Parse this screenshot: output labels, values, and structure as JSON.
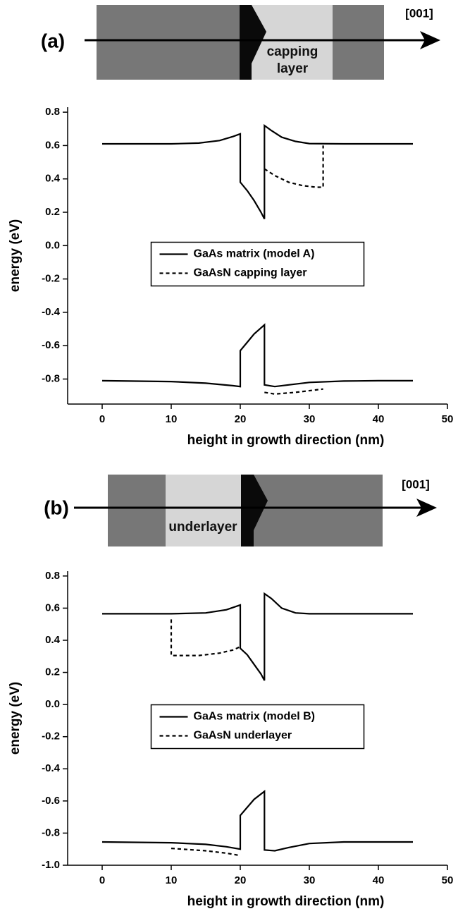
{
  "chart_data": [
    {
      "type": "line",
      "panel_label": "(a)",
      "direction_label": "[001]",
      "layer_label": "capping layer",
      "ylabel": "energy (eV)",
      "xlabel": "height in growth direction (nm)",
      "xlim": [
        -5,
        50
      ],
      "xticks": [
        0,
        10,
        20,
        30,
        40,
        50
      ],
      "ylim": [
        -0.95,
        0.83
      ],
      "yticks": [
        -0.8,
        -0.6,
        -0.4,
        -0.2,
        {
          "value": 0,
          "label": "0.0"
        },
        0.2,
        0.4,
        0.6,
        0.8
      ],
      "legend": "center",
      "series": [
        {
          "name": "GaAs matrix (model A)",
          "color": "#000000",
          "dash": "solid",
          "x": [
            0,
            5,
            10,
            14,
            17,
            19,
            20,
            20,
            21,
            22,
            23,
            23.5,
            23.5,
            24.5,
            26,
            28,
            30,
            35,
            40,
            45,
            null,
            0,
            10,
            15,
            19,
            20,
            20,
            21,
            22,
            23.5,
            23.5,
            25,
            27,
            30,
            35,
            40,
            45
          ],
          "values": [
            0.61,
            0.61,
            0.61,
            0.615,
            0.63,
            0.655,
            0.67,
            0.38,
            0.33,
            0.27,
            0.2,
            0.16,
            0.72,
            0.69,
            0.65,
            0.625,
            0.612,
            0.61,
            0.61,
            0.61,
            null,
            -0.81,
            -0.815,
            -0.825,
            -0.84,
            -0.845,
            -0.63,
            -0.58,
            -0.53,
            -0.475,
            -0.835,
            -0.845,
            -0.835,
            -0.82,
            -0.812,
            -0.81,
            -0.81
          ]
        },
        {
          "name": "GaAsN capping layer",
          "color": "#000000",
          "dash": "dashed",
          "x": [
            23.5,
            25,
            27,
            29,
            31,
            32,
            32,
            null,
            23.5,
            25,
            28,
            32
          ],
          "values": [
            0.46,
            0.42,
            0.38,
            0.36,
            0.35,
            0.35,
            0.6,
            null,
            -0.88,
            -0.89,
            -0.88,
            -0.86
          ]
        }
      ]
    },
    {
      "type": "line",
      "panel_label": "(b)",
      "direction_label": "[001]",
      "layer_label": "underlayer",
      "ylabel": "energy (eV)",
      "xlabel": "height in growth direction (nm)",
      "xlim": [
        -5,
        50
      ],
      "xticks": [
        0,
        10,
        20,
        30,
        40,
        50
      ],
      "ylim": [
        -1.0,
        0.83
      ],
      "yticks": [
        {
          "value": -1,
          "label": "-1.0"
        },
        -0.8,
        -0.6,
        -0.4,
        -0.2,
        {
          "value": 0,
          "label": "0.0"
        },
        0.2,
        0.4,
        0.6,
        0.8
      ],
      "legend": "center",
      "series": [
        {
          "name": "GaAs matrix (model B)",
          "color": "#000000",
          "dash": "solid",
          "x": [
            0,
            10,
            15,
            18,
            20,
            20,
            21,
            22,
            23,
            23.5,
            23.5,
            24.5,
            26,
            28,
            30,
            45,
            null,
            0,
            10,
            15,
            18,
            20,
            20,
            21,
            22,
            23.5,
            23.5,
            25,
            27,
            30,
            35,
            45
          ],
          "values": [
            0.565,
            0.565,
            0.57,
            0.59,
            0.62,
            0.35,
            0.31,
            0.25,
            0.19,
            0.15,
            0.69,
            0.66,
            0.6,
            0.57,
            0.565,
            0.565,
            null,
            -0.855,
            -0.86,
            -0.87,
            -0.885,
            -0.9,
            -0.69,
            -0.64,
            -0.59,
            -0.54,
            -0.905,
            -0.91,
            -0.89,
            -0.865,
            -0.855,
            -0.855
          ]
        },
        {
          "name": "GaAsN underlayer",
          "color": "#000000",
          "dash": "dashed",
          "x": [
            10,
            10,
            14,
            17,
            19,
            20,
            null,
            10,
            15,
            18,
            20
          ],
          "values": [
            0.53,
            0.305,
            0.305,
            0.32,
            0.34,
            0.36,
            null,
            -0.895,
            -0.91,
            -0.925,
            -0.94
          ]
        }
      ]
    }
  ]
}
